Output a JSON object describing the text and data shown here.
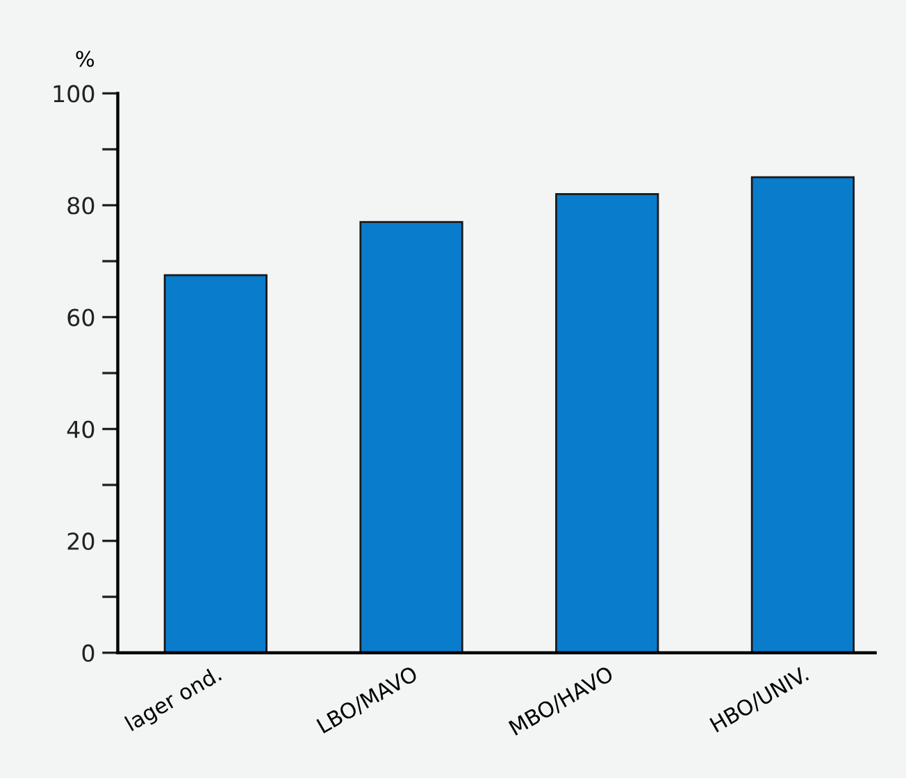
{
  "chart_data": {
    "type": "bar",
    "ylabel": "%",
    "categories": [
      "lager ond.",
      "LBO/MAVO",
      "MBO/HAVO",
      "HBO/UNIV."
    ],
    "values": [
      67.5,
      77,
      82,
      85
    ],
    "color": "#0a7ccc",
    "ylim": [
      0,
      100
    ],
    "yticks": [
      0,
      {
        "value": 10,
        "label": null
      },
      20,
      {
        "value": 30,
        "label": null
      },
      40,
      {
        "value": 50,
        "label": null
      },
      60,
      {
        "value": 70,
        "label": null
      },
      80,
      {
        "value": 90,
        "label": null
      },
      100
    ],
    "grid": false
  }
}
